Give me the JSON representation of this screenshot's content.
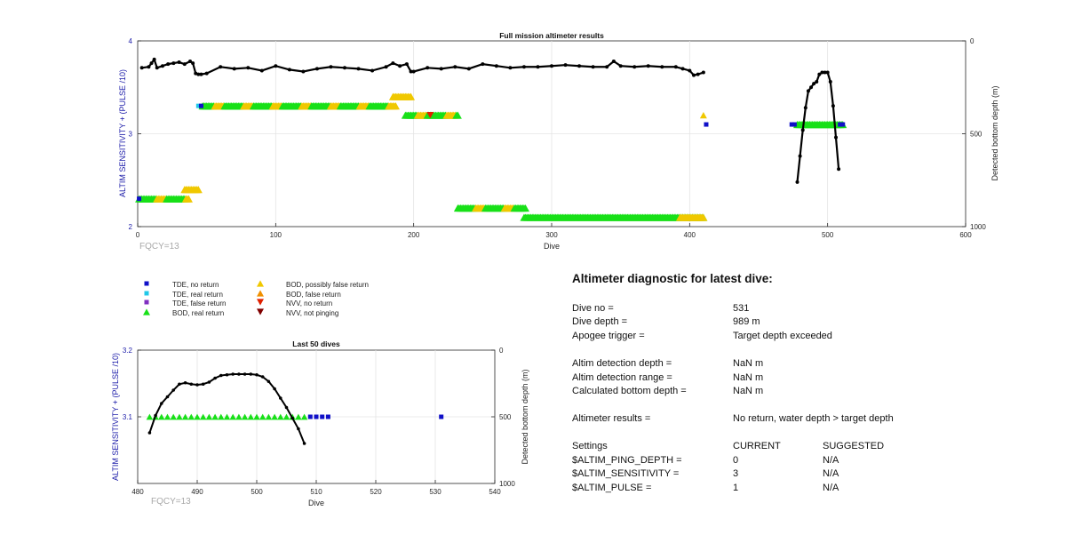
{
  "main_chart": {
    "title": "Full mission altimeter results",
    "xlabel": "Dive",
    "ylabel_left": "ALTIM SENSITIVITY + (PULSE /10)",
    "ylabel_right": "Detected bottom depth (m)",
    "fqcy_label": "FQCY=13",
    "x_ticks": [
      "0",
      "100",
      "200",
      "300",
      "400",
      "500",
      "600"
    ],
    "y_left_ticks": [
      "2",
      "3",
      "4"
    ],
    "y_right_ticks": [
      "0",
      "500",
      "1000"
    ]
  },
  "sub_chart": {
    "title": "Last 50 dives",
    "xlabel": "Dive",
    "ylabel_left": "ALTIM SENSITIVITY + (PULSE /10)",
    "ylabel_right": "Detected bottom depth (m)",
    "fqcy_label": "FQCY=13",
    "x_ticks": [
      "480",
      "490",
      "500",
      "510",
      "520",
      "530",
      "540"
    ],
    "y_left_ticks": [
      "3.1",
      "3.2"
    ],
    "y_right_ticks": [
      "0",
      "500",
      "1000"
    ]
  },
  "legend": [
    {
      "label": "TDE, no return",
      "color": "#1010c8",
      "shape": "square"
    },
    {
      "label": "TDE, real return",
      "color": "#20c8e8",
      "shape": "square"
    },
    {
      "label": "TDE, false return",
      "color": "#8030c0",
      "shape": "square"
    },
    {
      "label": "BOD, real return",
      "color": "#18e018",
      "shape": "triangle-up"
    },
    {
      "label": "BOD, possibly false return",
      "color": "#f0c800",
      "shape": "triangle-up"
    },
    {
      "label": "BOD, false return",
      "color": "#f09000",
      "shape": "triangle-up"
    },
    {
      "label": "NVV, no return",
      "color": "#e02000",
      "shape": "triangle-down"
    },
    {
      "label": "NVV, not pinging",
      "color": "#800000",
      "shape": "triangle-down"
    }
  ],
  "diagnostic": {
    "title": "Altimeter diagnostic for latest dive:",
    "rows": [
      {
        "label": "Dive no =",
        "value": "531"
      },
      {
        "label": "Dive depth =",
        "value": "989 m"
      },
      {
        "label": "Apogee trigger =",
        "value": "Target depth exceeded"
      },
      {
        "label": "Altim detection depth =",
        "value": "NaN m"
      },
      {
        "label": "Altim detection range =",
        "value": "NaN m"
      },
      {
        "label": "Calculated bottom depth =",
        "value": "NaN m"
      },
      {
        "label": "Altimeter results =",
        "value": "No return, water depth > target depth"
      }
    ],
    "settings": {
      "header": {
        "label": "Settings",
        "current": "CURRENT",
        "suggested": "SUGGESTED"
      },
      "rows": [
        {
          "label": "$ALTIM_PING_DEPTH =",
          "current": "0",
          "suggested": "N/A"
        },
        {
          "label": "$ALTIM_SENSITIVITY =",
          "current": "3",
          "suggested": "N/A"
        },
        {
          "label": "$ALTIM_PULSE =",
          "current": "1",
          "suggested": "N/A"
        }
      ]
    }
  },
  "chart_data": [
    {
      "type": "scatter",
      "title": "Full mission altimeter results",
      "xlabel": "Dive",
      "ylabel": "ALTIM SENSITIVITY + (PULSE /10)",
      "ylabel_right": "Detected bottom depth (m)",
      "xlim": [
        0,
        600
      ],
      "ylim": [
        2,
        4
      ],
      "ylim_right": [
        1000,
        0
      ],
      "grid": true,
      "segments": [
        {
          "x_start": 1,
          "x_end": 37,
          "y": 2.3,
          "colors": [
            "green",
            "yellow"
          ]
        },
        {
          "x_start": 34,
          "x_end": 44,
          "y": 2.4,
          "colors": [
            "yellow"
          ]
        },
        {
          "x_start": 47,
          "x_end": 187,
          "y": 3.3,
          "colors": [
            "green",
            "yellow"
          ]
        },
        {
          "x_start": 185,
          "x_end": 198,
          "y": 3.4,
          "colors": [
            "yellow"
          ]
        },
        {
          "x_start": 194,
          "x_end": 232,
          "y": 3.2,
          "colors": [
            "green",
            "yellow"
          ]
        },
        {
          "x_start": 232,
          "x_end": 281,
          "y": 2.2,
          "colors": [
            "green",
            "yellow"
          ]
        },
        {
          "x_start": 280,
          "x_end": 410,
          "y": 2.1,
          "colors": [
            "green"
          ]
        },
        {
          "x_start": 393,
          "x_end": 410,
          "y": 2.1,
          "colors": [
            "yellow"
          ]
        },
        {
          "x_start": 478,
          "x_end": 511,
          "y": 3.1,
          "colors": [
            "green"
          ]
        }
      ],
      "points": [
        {
          "x": 1,
          "y": 2.3,
          "marker": "TDE, no return"
        },
        {
          "x": 44,
          "y": 3.3,
          "marker": "TDE, real return"
        },
        {
          "x": 46,
          "y": 3.3,
          "marker": "TDE, no return"
        },
        {
          "x": 212,
          "y": 3.2,
          "marker": "NVV, no return"
        },
        {
          "x": 410,
          "y": 3.2,
          "marker": "BOD, possibly false return"
        },
        {
          "x": 412,
          "y": 3.1,
          "marker": "TDE, no return"
        },
        {
          "x": 474,
          "y": 3.1,
          "marker": "TDE, no return"
        },
        {
          "x": 476,
          "y": 3.1,
          "marker": "TDE, no return"
        },
        {
          "x": 509,
          "y": 3.1,
          "marker": "TDE, no return"
        },
        {
          "x": 511,
          "y": 3.1,
          "marker": "TDE, no return"
        }
      ],
      "depth_series_1": {
        "x": [
          3,
          8,
          10,
          12,
          14,
          18,
          22,
          26,
          30,
          34,
          38,
          40,
          42,
          44,
          46,
          50,
          60,
          70,
          80,
          90,
          100,
          110,
          120,
          130,
          140,
          150,
          160,
          170,
          180,
          185,
          190,
          195,
          198,
          200,
          210,
          220,
          230,
          240,
          250,
          260,
          270,
          280,
          290,
          300,
          310,
          320,
          330,
          340,
          345,
          350,
          360,
          370,
          380,
          390,
          395,
          400,
          403,
          406,
          410
        ],
        "y": [
          145,
          140,
          120,
          100,
          145,
          135,
          125,
          120,
          115,
          125,
          110,
          120,
          175,
          180,
          180,
          175,
          140,
          150,
          145,
          160,
          135,
          155,
          165,
          150,
          140,
          145,
          150,
          160,
          140,
          120,
          135,
          125,
          165,
          165,
          145,
          150,
          140,
          150,
          125,
          135,
          145,
          140,
          140,
          135,
          130,
          135,
          140,
          140,
          110,
          135,
          140,
          135,
          140,
          140,
          150,
          160,
          185,
          180,
          170
        ]
      },
      "depth_series_2": {
        "x": [
          478,
          480,
          482,
          484,
          486,
          488,
          490,
          492,
          494,
          496,
          498,
          500,
          502,
          504,
          506,
          508
        ],
        "y": [
          760,
          620,
          480,
          360,
          270,
          250,
          230,
          220,
          180,
          170,
          170,
          170,
          220,
          350,
          520,
          690
        ]
      }
    },
    {
      "type": "scatter",
      "title": "Last 50 dives",
      "xlabel": "Dive",
      "ylabel": "ALTIM SENSITIVITY + (PULSE /10)",
      "ylabel_right": "Detected bottom depth (m)",
      "xlim": [
        480,
        540
      ],
      "ylim": [
        3.0,
        3.2
      ],
      "ylim_right": [
        1000,
        0
      ],
      "grid": true,
      "bod_real_return_x": [
        482,
        483,
        484,
        485,
        486,
        487,
        488,
        489,
        490,
        491,
        492,
        493,
        494,
        495,
        496,
        497,
        498,
        499,
        500,
        501,
        502,
        503,
        504,
        505,
        506,
        507,
        508
      ],
      "bod_y": 3.1,
      "tde_no_return_x": [
        509,
        510,
        511,
        512,
        531
      ],
      "tde_y": 3.1,
      "depth_series": {
        "x": [
          482,
          483,
          484,
          485,
          486,
          487,
          488,
          489,
          490,
          491,
          492,
          493,
          494,
          495,
          496,
          497,
          498,
          499,
          500,
          501,
          502,
          503,
          504,
          505,
          506,
          507,
          508
        ],
        "y": [
          620,
          490,
          400,
          350,
          300,
          255,
          245,
          255,
          260,
          255,
          240,
          210,
          190,
          185,
          180,
          180,
          180,
          180,
          185,
          200,
          235,
          290,
          360,
          430,
          510,
          590,
          700
        ]
      }
    }
  ]
}
